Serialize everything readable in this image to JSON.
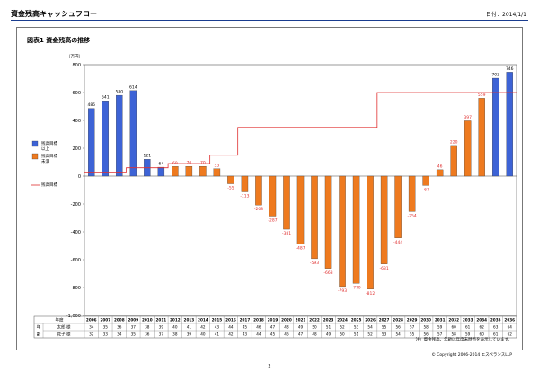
{
  "header": {
    "title": "資金残高キャッシュフロー",
    "date_label": "日付：2014/1/1"
  },
  "section": {
    "title": "図表1  資金残高の推移"
  },
  "chart_data": {
    "type": "bar",
    "y_unit": "（万円）",
    "ylim": [
      -1000,
      800
    ],
    "yticks": [
      800,
      600,
      400,
      200,
      0,
      -200,
      -400,
      -600,
      -800,
      -1000
    ],
    "grid": false,
    "legend_position": "left",
    "categories": [
      "2006",
      "2007",
      "2008",
      "2009",
      "2010",
      "2011",
      "2012",
      "2013",
      "2014",
      "2015",
      "2016",
      "2017",
      "2018",
      "2019",
      "2020",
      "2021",
      "2022",
      "2023",
      "2024",
      "2025",
      "2026",
      "2027",
      "2028",
      "2029",
      "2030",
      "2031",
      "2032",
      "2033",
      "2034",
      "2035",
      "2036"
    ],
    "balance": [
      486,
      541,
      580,
      614,
      121,
      64,
      69,
      70,
      70,
      53,
      -55,
      -113,
      -208,
      -287,
      -381,
      -487,
      -593,
      -663,
      -793,
      -770,
      -812,
      -631,
      -444,
      -254,
      -67,
      46,
      220,
      397,
      559,
      703,
      746
    ],
    "target": [
      30,
      30,
      30,
      60,
      60,
      60,
      90,
      90,
      90,
      150,
      150,
      350,
      350,
      350,
      350,
      350,
      350,
      350,
      350,
      350,
      350,
      600,
      600,
      600,
      600,
      600,
      600,
      600,
      600,
      600,
      600
    ],
    "legend": [
      {
        "label_line1": "残高目標",
        "label_line2": "以上",
        "color": "#3d63d6",
        "kind": "box"
      },
      {
        "label_line1": "残高目標",
        "label_line2": "未満",
        "color": "#ee7a1f",
        "kind": "box"
      },
      {
        "label_line1": "残高目標",
        "label_line2": "",
        "color": "#e03030",
        "kind": "line"
      }
    ],
    "colors": {
      "above": "#3d63d6",
      "below": "#ee7a1f",
      "target_line": "#e03030",
      "label_above": "#000000",
      "label_below": "#e03030"
    },
    "table": {
      "header_label": "年度",
      "side_label_top": "年",
      "side_label_bottom": "齢",
      "rows": [
        {
          "label": "太郎 様",
          "values": [
            34,
            35,
            36,
            37,
            38,
            39,
            40,
            41,
            42,
            43,
            44,
            45,
            46,
            47,
            48,
            49,
            50,
            51,
            52,
            53,
            54,
            55,
            56,
            57,
            58,
            59,
            60,
            61,
            62,
            63,
            64
          ]
        },
        {
          "label": "花子 様",
          "values": [
            32,
            33,
            34,
            35,
            36,
            37,
            38,
            39,
            40,
            41,
            42,
            43,
            44,
            45,
            46,
            47,
            48,
            49,
            50,
            51,
            52,
            53,
            54,
            55,
            56,
            57,
            58,
            59,
            60,
            61,
            62
          ]
        }
      ]
    }
  },
  "footer": {
    "note": "注）資金残高、年齢は年度末時点を表示しています。",
    "copyright": "© Copyright 2006-2014 エスペランスLLP",
    "page_number": "2"
  }
}
